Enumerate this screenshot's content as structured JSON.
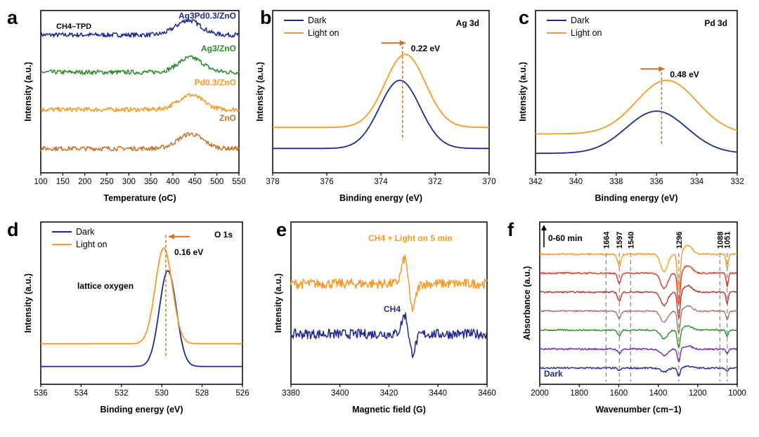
{
  "chart_data": [
    {
      "panel": "a",
      "type": "line",
      "title": "CH4–TPD",
      "xlabel": "Temperature (oC)",
      "ylabel": "Intensity (a.u.)",
      "xlim": [
        100,
        550
      ],
      "xticks": [
        "100",
        "150",
        "200",
        "250",
        "300",
        "350",
        "400",
        "450",
        "500",
        "550"
      ],
      "grid": false,
      "series": [
        {
          "name": "Ag3Pd0.3/ZnO",
          "color": "#1f2a8a",
          "peak_x": 435,
          "baseline": 0.85,
          "noise": 0.04
        },
        {
          "name": "Ag3/ZnO",
          "color": "#2e8b2e",
          "peak_x": 440,
          "baseline": 0.62,
          "noise": 0.04
        },
        {
          "name": "Pd0.3/ZnO",
          "color": "#f39a2a",
          "peak_x": 440,
          "baseline": 0.39,
          "noise": 0.04
        },
        {
          "name": "ZnO",
          "color": "#c8742a",
          "peak_x": 440,
          "baseline": 0.15,
          "noise": 0.04
        }
      ],
      "legend_position": "right"
    },
    {
      "panel": "b",
      "type": "line",
      "title": "Ag 3d",
      "xlabel": "Binding energy (eV)",
      "ylabel": "Intensity (a.u.)",
      "xlim": [
        378,
        370
      ],
      "xticks": [
        "378",
        "376",
        "374",
        "372",
        "370"
      ],
      "grid": false,
      "series": [
        {
          "name": "Dark",
          "color": "#1f2a8a",
          "peak_x": 373.3
        },
        {
          "name": "Light on",
          "color": "#f39a2a",
          "peak_x": 373.1
        }
      ],
      "annotation": "0.22 eV",
      "legend_position": "top-left"
    },
    {
      "panel": "c",
      "type": "line",
      "title": "Pd 3d",
      "xlabel": "Binding energy (eV)",
      "ylabel": "Intensity (a.u.)",
      "xlim": [
        342,
        332
      ],
      "xticks": [
        "342",
        "340",
        "338",
        "336",
        "334",
        "332"
      ],
      "grid": false,
      "series": [
        {
          "name": "Dark",
          "color": "#1f2a8a",
          "peak_x": 336.0
        },
        {
          "name": "Light on",
          "color": "#f39a2a",
          "peak_x": 335.5
        }
      ],
      "annotation": "0.48 eV",
      "legend_position": "top-left"
    },
    {
      "panel": "d",
      "type": "line",
      "title": "O 1s",
      "xlabel": "Binding energy (eV)",
      "ylabel": "Intensity (a.u.)",
      "xlim": [
        536,
        526
      ],
      "xticks": [
        "536",
        "534",
        "532",
        "530",
        "528",
        "526"
      ],
      "grid": false,
      "series": [
        {
          "name": "Dark",
          "color": "#1f2a8a",
          "peak_x": 529.7
        },
        {
          "name": "Light on",
          "color": "#f39a2a",
          "peak_x": 529.9
        }
      ],
      "annotation": "0.16 eV",
      "annotation2": "lattice oxygen",
      "legend_position": "top-left"
    },
    {
      "panel": "e",
      "type": "line",
      "title": "",
      "xlabel": "Magnetic field (G)",
      "ylabel": "Intensity (a.u.)",
      "xlim": [
        3380,
        3460
      ],
      "xticks": [
        "3380",
        "3400",
        "3420",
        "3440",
        "3460"
      ],
      "grid": false,
      "series": [
        {
          "name": "CH4 + Light on 5 min",
          "color": "#f39a2a",
          "signal_x": 3428
        },
        {
          "name": "CH4",
          "color": "#1f2a8a",
          "signal_x": 3428
        }
      ],
      "legend_position": "none"
    },
    {
      "panel": "f",
      "type": "line",
      "title": "",
      "xlabel": "Wavenumber (cm−1)",
      "ylabel": "Absorbance (a.u.)",
      "xlim": [
        2000,
        1000
      ],
      "xticks": [
        "2000",
        "1800",
        "1600",
        "1400",
        "1200",
        "1000"
      ],
      "grid": false,
      "time_label": "0-60 min",
      "bottom_label": "Dark",
      "reference_lines": [
        "1664",
        "1597",
        "1540",
        "1296",
        "1088",
        "1051"
      ],
      "series": [
        {
          "name": "Dark",
          "color": "#1f2a8a"
        },
        {
          "name": "",
          "color": "#6a2aa8"
        },
        {
          "name": "",
          "color": "#2e8b2e"
        },
        {
          "name": "",
          "color": "#a0786e"
        },
        {
          "name": "",
          "color": "#b03a2e"
        },
        {
          "name": "",
          "color": "#e03a2a"
        },
        {
          "name": "",
          "color": "#f39a2a"
        }
      ]
    }
  ]
}
